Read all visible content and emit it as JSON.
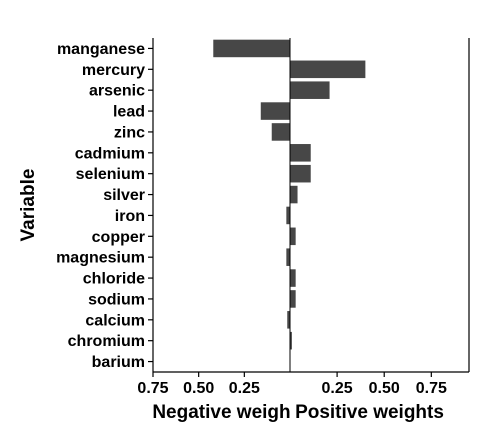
{
  "chart_data": {
    "type": "bar",
    "orientation": "horizontal",
    "ylabel": "Variable",
    "categories": [
      "manganese",
      "mercury",
      "arsenic",
      "lead",
      "zinc",
      "cadmium",
      "selenium",
      "silver",
      "iron",
      "copper",
      "magnesium",
      "chloride",
      "sodium",
      "calcium",
      "chromium",
      "barium"
    ],
    "values": [
      -0.42,
      0.4,
      0.21,
      -0.16,
      -0.1,
      0.11,
      0.11,
      0.04,
      -0.02,
      0.03,
      -0.02,
      0.03,
      0.03,
      -0.015,
      0.01,
      0.0
    ],
    "panels": [
      {
        "name": "Negative weights",
        "title": "Negative weigh",
        "xlim": [
          -0.75,
          0
        ],
        "ticks": [
          -0.75,
          -0.5,
          -0.25
        ],
        "tick_labels": [
          "0.75",
          "0.50",
          "0.25"
        ]
      },
      {
        "name": "Positive weights",
        "title": "Positive weights",
        "xlim": [
          0,
          0.95
        ],
        "ticks": [
          0.25,
          0.5,
          0.75
        ],
        "tick_labels": [
          "0.25",
          "0.50",
          "0.75"
        ]
      }
    ],
    "bar_color": "#474747",
    "grid": false
  }
}
